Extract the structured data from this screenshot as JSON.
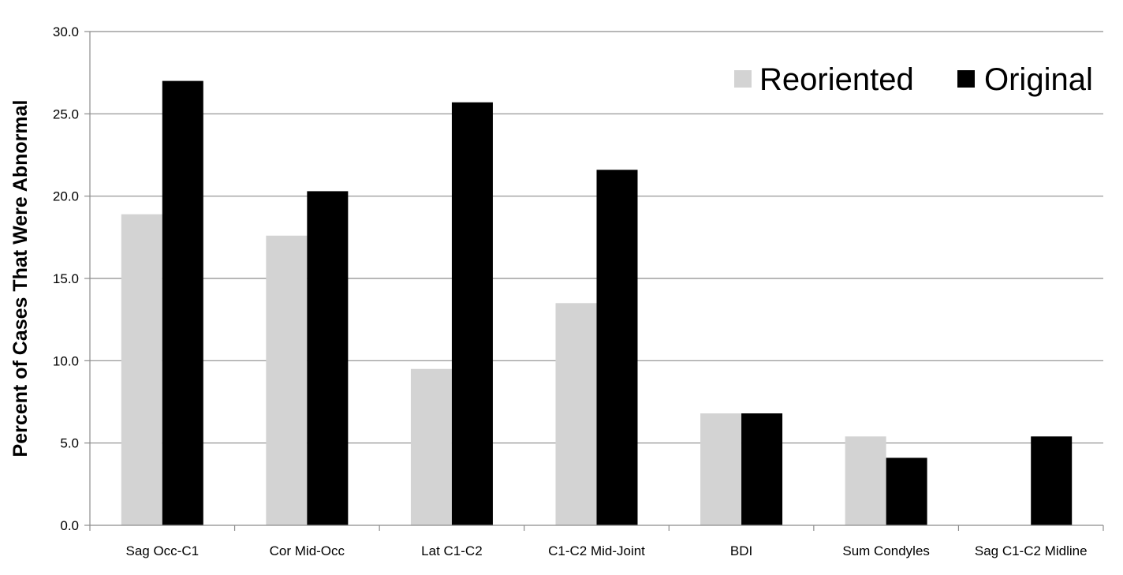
{
  "chart_data": {
    "type": "bar",
    "title": "",
    "xlabel": "",
    "ylabel": "Percent of Cases That Were Abnormal",
    "ylim": [
      0,
      30
    ],
    "y_ticks": [
      "0.0",
      "5.0",
      "10.0",
      "15.0",
      "20.0",
      "25.0",
      "30.0"
    ],
    "grid": "horizontal",
    "legend_position": "top-right",
    "categories": [
      "Sag Occ-C1",
      "Cor Mid-Occ",
      "Lat C1-C2",
      "C1-C2 Mid-Joint",
      "BDI",
      "Sum Condyles",
      "Sag C1-C2 Midline"
    ],
    "series": [
      {
        "name": "Reoriented",
        "color": "#d3d3d3",
        "values": [
          18.9,
          17.6,
          9.5,
          13.5,
          6.8,
          5.4,
          0.0
        ]
      },
      {
        "name": "Original",
        "color": "#000000",
        "values": [
          27.0,
          20.3,
          25.7,
          21.6,
          6.8,
          4.1,
          5.4
        ]
      }
    ]
  }
}
